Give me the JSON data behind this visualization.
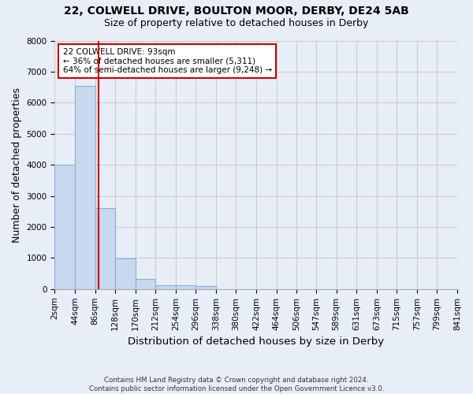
{
  "title_line1": "22, COLWELL DRIVE, BOULTON MOOR, DERBY, DE24 5AB",
  "title_line2": "Size of property relative to detached houses in Derby",
  "xlabel": "Distribution of detached houses by size in Derby",
  "ylabel": "Number of detached properties",
  "footer": "Contains HM Land Registry data © Crown copyright and database right 2024.\nContains public sector information licensed under the Open Government Licence v3.0.",
  "bin_edges": [
    2,
    44,
    86,
    128,
    170,
    212,
    254,
    296,
    338,
    380,
    422,
    464,
    506,
    547,
    589,
    631,
    673,
    715,
    757,
    799,
    841
  ],
  "bar_heights": [
    4000,
    6550,
    2600,
    980,
    320,
    130,
    120,
    100,
    0,
    0,
    0,
    0,
    0,
    0,
    0,
    0,
    0,
    0,
    0,
    0
  ],
  "bar_color": "#c8d8ee",
  "bar_edge_color": "#8aafd4",
  "property_size": 93,
  "property_line_color": "#cc0000",
  "annotation_text": "22 COLWELL DRIVE: 93sqm\n← 36% of detached houses are smaller (5,311)\n64% of semi-detached houses are larger (9,248) →",
  "annotation_box_color": "#ffffff",
  "annotation_box_edge_color": "#cc0000",
  "ylim": [
    0,
    8000
  ],
  "yticks": [
    0,
    1000,
    2000,
    3000,
    4000,
    5000,
    6000,
    7000,
    8000
  ],
  "grid_color": "#cccccc",
  "bg_color": "#e8eef8",
  "title_fontsize": 10,
  "subtitle_fontsize": 9,
  "axis_label_fontsize": 9,
  "tick_fontsize": 7.5
}
